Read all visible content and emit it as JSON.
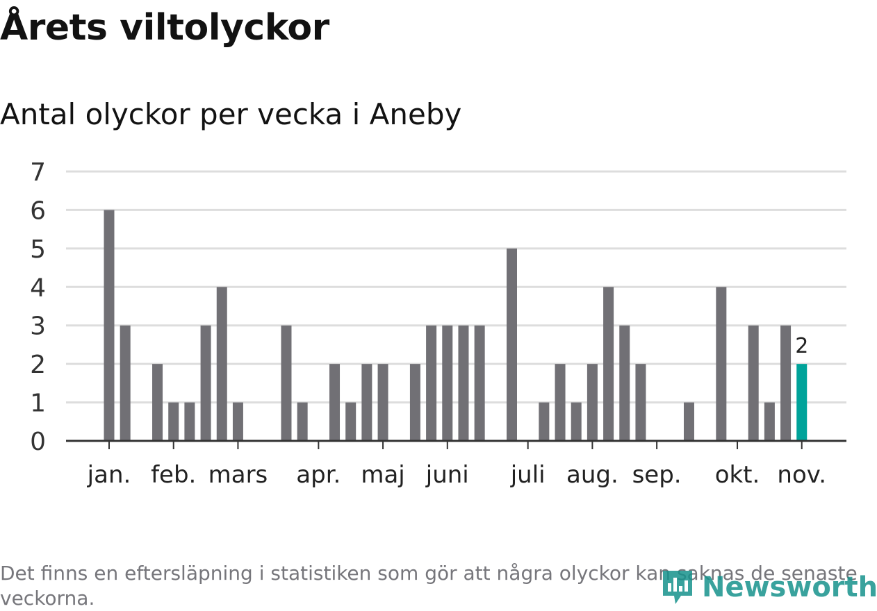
{
  "header": {
    "title": "Årets viltolyckor",
    "subtitle": "Antal olyckor per vecka i Aneby"
  },
  "footnote": "Det finns en eftersläpning i statistiken som gör att några olyckor kan saknas de senaste veckorna.",
  "brand": {
    "name": "Newsworthy",
    "icon": "newsworthy-logo-icon",
    "color": "#17928c"
  },
  "colors": {
    "bar": "#717075",
    "highlight": "#00a39a",
    "grid": "#dddddd",
    "axis": "#333333"
  },
  "chart_data": {
    "type": "bar",
    "x_unit": "week",
    "categories": [
      "1",
      "2",
      "3",
      "4",
      "5",
      "6",
      "7",
      "8",
      "9",
      "10",
      "11",
      "12",
      "13",
      "14",
      "15",
      "16",
      "17",
      "18",
      "19",
      "20",
      "21",
      "22",
      "23",
      "24",
      "25",
      "26",
      "27",
      "28",
      "29",
      "30",
      "31",
      "32",
      "33",
      "34",
      "35",
      "36",
      "37",
      "38",
      "39",
      "40",
      "41",
      "42",
      "43",
      "44",
      "45"
    ],
    "values": [
      6,
      3,
      0,
      2,
      1,
      1,
      3,
      4,
      1,
      0,
      0,
      3,
      1,
      0,
      2,
      1,
      2,
      2,
      0,
      2,
      3,
      3,
      3,
      3,
      0,
      5,
      0,
      1,
      2,
      1,
      2,
      4,
      3,
      2,
      0,
      0,
      1,
      0,
      4,
      0,
      3,
      1,
      3,
      2,
      null
    ],
    "ylim": [
      0,
      7
    ],
    "yticks": [
      0,
      1,
      2,
      3,
      4,
      5,
      6,
      7
    ],
    "grid": true,
    "xticks": [
      {
        "label": "jan.",
        "week": 1
      },
      {
        "label": "feb.",
        "week": 5
      },
      {
        "label": "mars",
        "week": 9
      },
      {
        "label": "apr.",
        "week": 14
      },
      {
        "label": "maj",
        "week": 18
      },
      {
        "label": "juni",
        "week": 22
      },
      {
        "label": "juli",
        "week": 27
      },
      {
        "label": "aug.",
        "week": 31
      },
      {
        "label": "sep.",
        "week": 35
      },
      {
        "label": "okt.",
        "week": 40
      },
      {
        "label": "nov.",
        "week": 44
      }
    ],
    "highlight": {
      "week": 44,
      "label": "2"
    }
  }
}
